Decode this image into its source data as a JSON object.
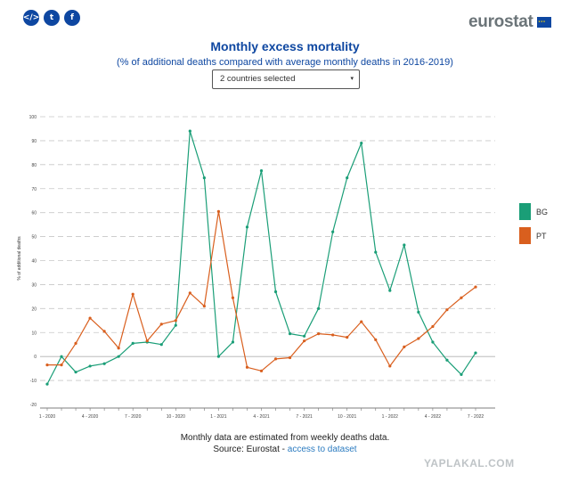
{
  "share": {
    "embed_icon": "code-icon",
    "embed_glyph": "</>",
    "twitter_icon": "twitter-icon",
    "twitter_glyph": "t",
    "facebook_icon": "facebook-icon",
    "facebook_glyph": "f"
  },
  "logo": {
    "text": "eurostat",
    "flag_icon": "eu-flag-icon"
  },
  "header": {
    "title": "Monthly excess mortality",
    "subtitle": "(% of additional deaths compared with average monthly deaths in 2016-2019)"
  },
  "country_select": {
    "value": "2 countries selected",
    "caret": "▾"
  },
  "footer": {
    "note": "Monthly data are estimated from weekly deaths data.",
    "source_prefix": "Source: Eurostat - ",
    "source_link": "access to dataset"
  },
  "watermark": "YAPLAKAL.COM",
  "colors": {
    "BG": "#1a9e77",
    "PT": "#d95f1e",
    "brand": "#0e47a1"
  },
  "chart_data": {
    "type": "line",
    "title": "Monthly excess mortality",
    "subtitle": "(% of additional deaths compared with average monthly deaths in 2016-2019)",
    "ylabel": "% of additional deaths",
    "xlabel": "",
    "ylim": [
      -20,
      100
    ],
    "yticks": [
      -20,
      -10,
      0,
      10,
      20,
      30,
      40,
      50,
      60,
      70,
      80,
      90,
      100
    ],
    "grid": true,
    "legend_position": "right",
    "categories": [
      "1 - 2020",
      "2 - 2020",
      "3 - 2020",
      "4 - 2020",
      "5 - 2020",
      "6 - 2020",
      "7 - 2020",
      "8 - 2020",
      "9 - 2020",
      "10 - 2020",
      "11 - 2020",
      "12 - 2020",
      "1 - 2021",
      "2 - 2021",
      "3 - 2021",
      "4 - 2021",
      "5 - 2021",
      "6 - 2021",
      "7 - 2021",
      "8 - 2021",
      "9 - 2021",
      "10 - 2021",
      "11 - 2021",
      "12 - 2021",
      "1 - 2022",
      "2 - 2022",
      "3 - 2022",
      "4 - 2022",
      "5 - 2022",
      "6 - 2022",
      "7 - 2022"
    ],
    "xtick_labels": [
      {
        "index": 0,
        "label": "1 - 2020"
      },
      {
        "index": 3,
        "label": "4 - 2020"
      },
      {
        "index": 6,
        "label": "7 - 2020"
      },
      {
        "index": 9,
        "label": "10 - 2020"
      },
      {
        "index": 12,
        "label": "1 - 2021"
      },
      {
        "index": 15,
        "label": "4 - 2021"
      },
      {
        "index": 18,
        "label": "7 - 2021"
      },
      {
        "index": 21,
        "label": "10 - 2021"
      },
      {
        "index": 24,
        "label": "1 - 2022"
      },
      {
        "index": 27,
        "label": "4 - 2022"
      },
      {
        "index": 30,
        "label": "7 - 2022"
      }
    ],
    "series": [
      {
        "name": "BG",
        "color": "#1a9e77",
        "values": [
          -11.5,
          0,
          -6.5,
          -4,
          -3,
          0,
          5.5,
          6,
          5,
          13,
          94,
          74.5,
          0,
          6,
          54,
          77.5,
          27,
          9.5,
          8.5,
          20,
          52,
          74.5,
          89,
          43.5,
          27.5,
          46.5,
          18.5,
          6,
          -1.5,
          -7.5,
          1.5
        ]
      },
      {
        "name": "PT",
        "color": "#d95f1e",
        "values": [
          -3.5,
          -3.5,
          5.5,
          16,
          10.5,
          3.5,
          26,
          6.5,
          13.5,
          15,
          26.5,
          21,
          60.5,
          24.5,
          -4.5,
          -6,
          -1,
          -0.5,
          6.5,
          9.5,
          9,
          8,
          14.5,
          7,
          -4,
          4,
          7.5,
          12.5,
          19.5,
          24.5,
          29
        ]
      }
    ]
  }
}
